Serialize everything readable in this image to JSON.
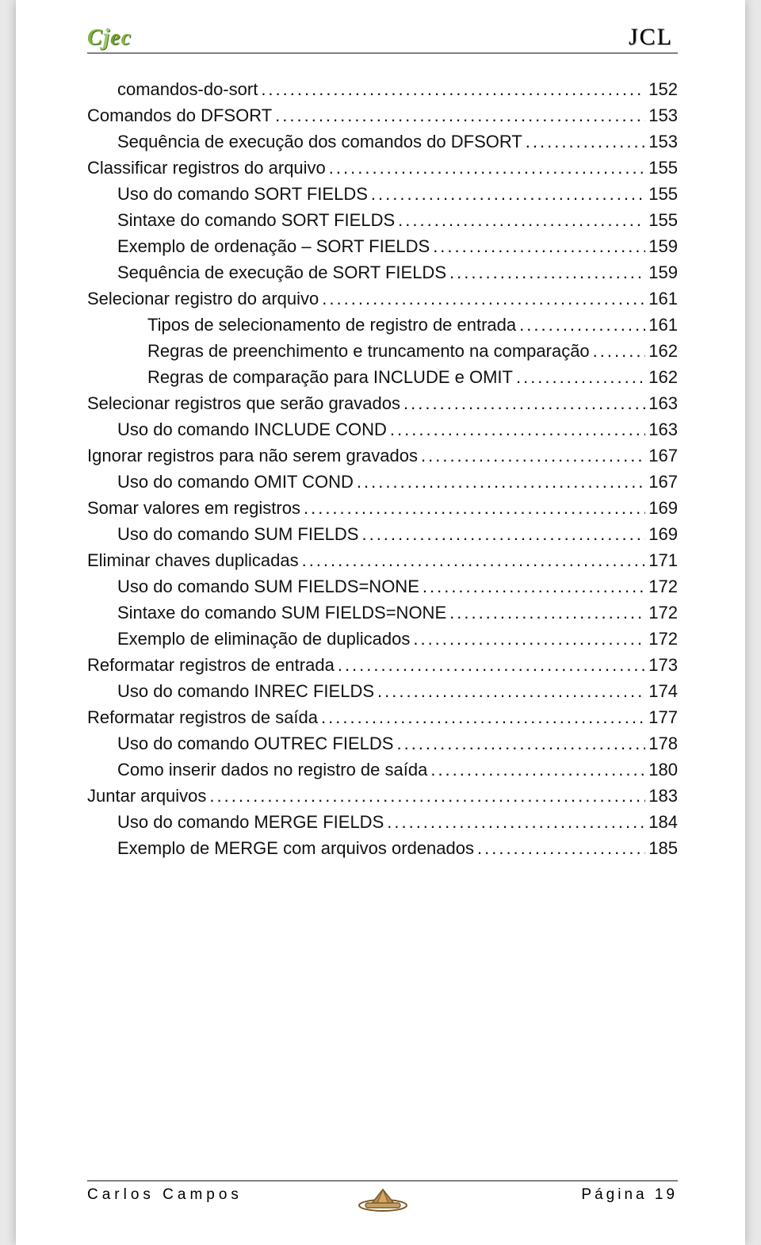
{
  "header": {
    "logo_letters": [
      "C",
      "j",
      "e",
      "c"
    ],
    "title": "JCL"
  },
  "toc": [
    {
      "level": 2,
      "label": "comandos-do-sort",
      "page": "152"
    },
    {
      "level": 1,
      "label": "Comandos do DFSORT",
      "page": "153"
    },
    {
      "level": 2,
      "label": "Sequência de execução dos comandos do DFSORT",
      "page": "153"
    },
    {
      "level": 1,
      "label": "Classificar registros do arquivo",
      "page": "155"
    },
    {
      "level": 2,
      "label": "Uso do comando SORT FIELDS",
      "page": "155"
    },
    {
      "level": 2,
      "label": "Sintaxe do comando SORT FIELDS",
      "page": "155"
    },
    {
      "level": 2,
      "label": "Exemplo de ordenação – SORT FIELDS",
      "page": "159"
    },
    {
      "level": 2,
      "label": "Sequência de execução de SORT FIELDS",
      "page": "159"
    },
    {
      "level": 1,
      "label": "Selecionar registro do arquivo",
      "page": "161"
    },
    {
      "level": 3,
      "label": "Tipos de selecionamento de registro de entrada",
      "page": "161"
    },
    {
      "level": 3,
      "label": "Regras de preenchimento e truncamento na comparação",
      "page": "162"
    },
    {
      "level": 3,
      "label": "Regras de comparação para INCLUDE e OMIT",
      "page": "162"
    },
    {
      "level": 1,
      "label": "Selecionar registros que serão gravados",
      "page": "163"
    },
    {
      "level": 2,
      "label": "Uso do comando INCLUDE COND",
      "page": "163"
    },
    {
      "level": 1,
      "label": "Ignorar registros para não serem gravados",
      "page": "167"
    },
    {
      "level": 2,
      "label": "Uso do comando OMIT COND",
      "page": "167"
    },
    {
      "level": 1,
      "label": "Somar valores em registros",
      "page": "169"
    },
    {
      "level": 2,
      "label": "Uso do comando SUM FIELDS",
      "page": "169"
    },
    {
      "level": 1,
      "label": "Eliminar chaves duplicadas",
      "page": "171"
    },
    {
      "level": 2,
      "label": "Uso do comando SUM FIELDS=NONE",
      "page": "172"
    },
    {
      "level": 2,
      "label": "Sintaxe do comando SUM FIELDS=NONE",
      "page": "172"
    },
    {
      "level": 2,
      "label": "Exemplo de eliminação de duplicados",
      "page": "172"
    },
    {
      "level": 1,
      "label": "Reformatar registros de entrada",
      "page": "173"
    },
    {
      "level": 2,
      "label": "Uso do comando INREC FIELDS",
      "page": "174"
    },
    {
      "level": 1,
      "label": "Reformatar registros de saída",
      "page": "177"
    },
    {
      "level": 2,
      "label": "Uso do comando OUTREC FIELDS",
      "page": "178"
    },
    {
      "level": 2,
      "label": "Como inserir dados no registro de saída",
      "page": "180"
    },
    {
      "level": 1,
      "label": "Juntar arquivos",
      "page": "183"
    },
    {
      "level": 2,
      "label": "Uso do comando MERGE FIELDS",
      "page": "184"
    },
    {
      "level": 2,
      "label": "Exemplo de MERGE com arquivos ordenados",
      "page": "185"
    }
  ],
  "footer": {
    "author": "Carlos Campos",
    "page_label": "Página 19"
  }
}
